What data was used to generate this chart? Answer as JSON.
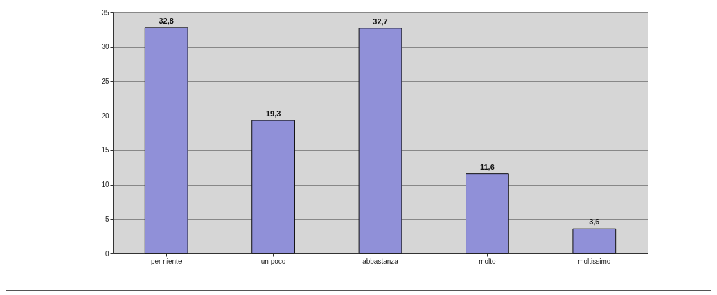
{
  "chart_data": {
    "type": "bar",
    "categories": [
      "per niente",
      "un poco",
      "abbastanza",
      "molto",
      "moltissimo"
    ],
    "values": [
      32.8,
      19.3,
      32.7,
      11.6,
      3.6
    ],
    "value_labels": [
      "32,8",
      "19,3",
      "32,7",
      "11,6",
      "3,6"
    ],
    "color": "#9090d8",
    "ylim": [
      0,
      35
    ],
    "yticks": [
      0,
      5,
      10,
      15,
      20,
      25,
      30,
      35
    ],
    "grid": "y"
  }
}
